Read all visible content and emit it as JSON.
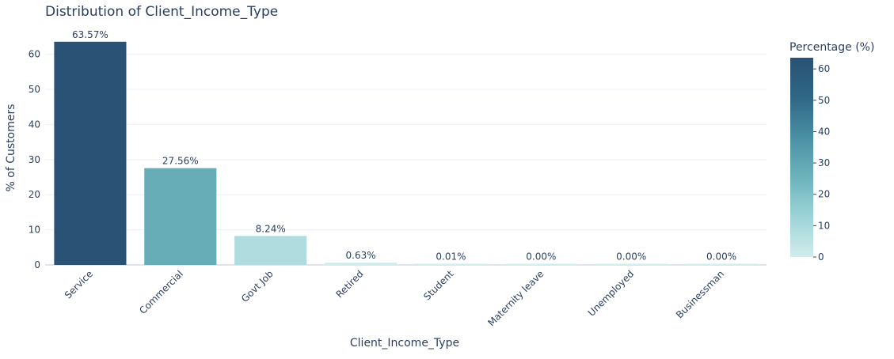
{
  "chart_data": {
    "type": "bar",
    "title": "Distribution of Client_Income_Type",
    "xlabel": "Client_Income_Type",
    "ylabel": "% of Customers",
    "categories": [
      "Service",
      "Commercial",
      "Govt Job",
      "Retired",
      "Student",
      "Maternity leave",
      "Unemployed",
      "Businessman"
    ],
    "values": [
      63.57,
      27.56,
      8.24,
      0.63,
      0.01,
      0.0,
      0.0,
      0.0
    ],
    "value_labels": [
      "63.57%",
      "27.56%",
      "8.24%",
      "0.63%",
      "0.01%",
      "0.00%",
      "0.00%",
      "0.00%"
    ],
    "ylim": [
      0,
      66.9
    ],
    "yticks": [
      0,
      10,
      20,
      30,
      40,
      50,
      60
    ],
    "grid": true,
    "colorbar": {
      "title": "Percentage (%)",
      "ticks": [
        0,
        10,
        20,
        30,
        40,
        50,
        60
      ],
      "range": [
        0,
        63.57
      ],
      "colorscale": [
        "#d3ecec",
        "#9dd4d8",
        "#6cb3bc",
        "#4a90a4",
        "#2f6787",
        "#2a5274"
      ]
    },
    "colors": {
      "text": "#2a3f5f",
      "grid": "#ebf0f8",
      "axis_line": "#dfe3ea"
    }
  }
}
